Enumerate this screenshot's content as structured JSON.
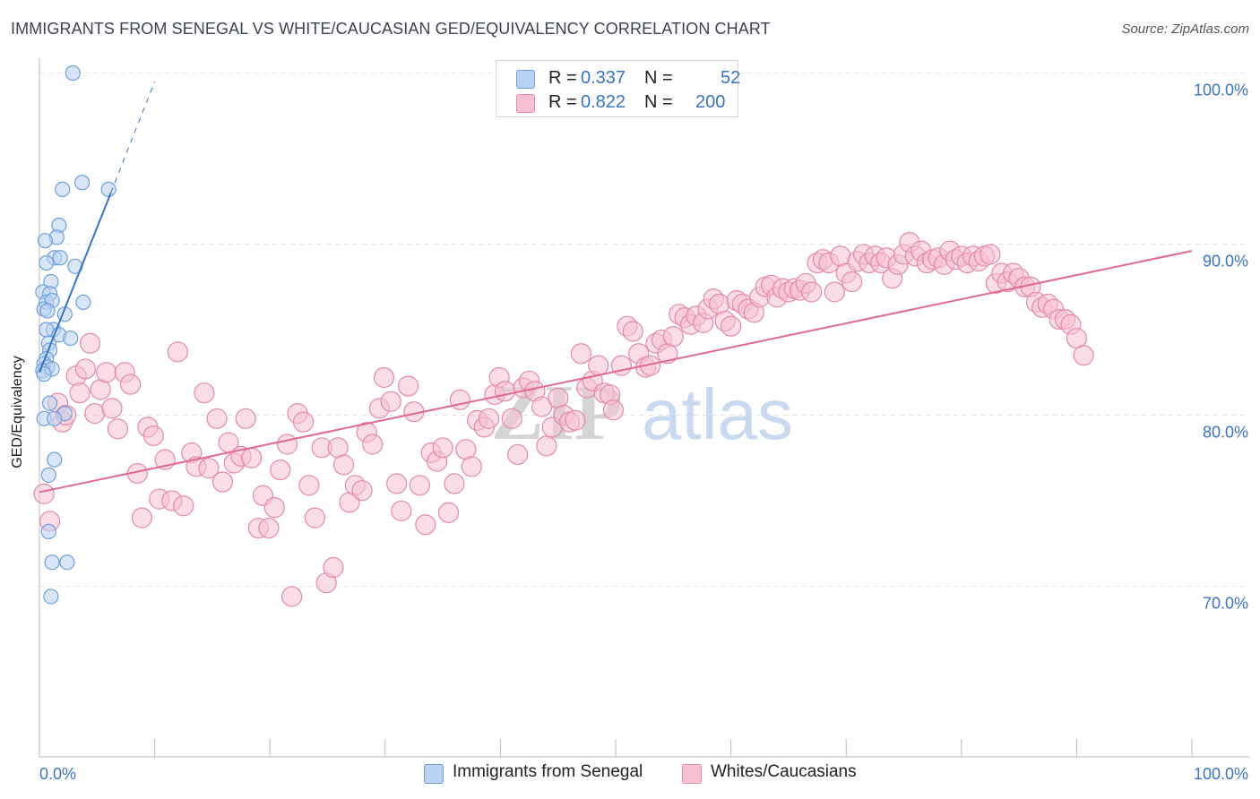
{
  "title": "IMMIGRANTS FROM SENEGAL VS WHITE/CAUCASIAN GED/EQUIVALENCY CORRELATION CHART",
  "source": "Source: ZipAtlas.com",
  "watermark": {
    "zip": "ZIP",
    "atlas": "atlas"
  },
  "legend": {
    "r_label": "R =",
    "n_label": "N =",
    "rows": [
      {
        "r": "0.337",
        "n": "52",
        "fill": "#b9d1f3",
        "stroke": "#6f9fdb"
      },
      {
        "r": "0.822",
        "n": "200",
        "fill": "#f8c1d2",
        "stroke": "#e48aa8"
      }
    ]
  },
  "bottom_legend": [
    "Immigrants from Senegal",
    "Whites/Caucasians"
  ],
  "chart_data": {
    "type": "scatter",
    "title": "IMMIGRANTS FROM SENEGAL VS WHITE/CAUCASIAN GED/EQUIVALENCY CORRELATION CHART",
    "ylabel": "GED/Equivalency",
    "xlabel": "",
    "xlim": [
      0,
      100
    ],
    "ylim": [
      61,
      102
    ],
    "x_tick_labels": [
      "0.0%",
      "100.0%"
    ],
    "y_ticks": [
      70,
      80,
      90,
      100
    ],
    "y_tick_labels": [
      "70.0%",
      "80.0%",
      "90.0%",
      "100.0%"
    ],
    "grid": true,
    "legend_position": "top-center",
    "colors": {
      "blue": "#3b73c2",
      "pink": "#e06993",
      "tick_text": "#3b73c2"
    },
    "series": [
      {
        "name": "Immigrants from Senegal",
        "color": "#6f9fdb",
        "fill": "#b9d1f3",
        "r": 0.337,
        "n": 52,
        "trend": {
          "x0": 0,
          "y0": 82.5,
          "x1": 6.2,
          "y1": 93.0,
          "dash_to_x": 10,
          "dash_to_y": 99.5
        },
        "points": [
          [
            2.9,
            100.0
          ],
          [
            3.7,
            93.6
          ],
          [
            2.0,
            93.2
          ],
          [
            6.0,
            93.2
          ],
          [
            1.7,
            91.1
          ],
          [
            1.5,
            90.4
          ],
          [
            0.5,
            90.2
          ],
          [
            1.3,
            89.2
          ],
          [
            1.8,
            89.2
          ],
          [
            0.6,
            88.9
          ],
          [
            3.1,
            88.7
          ],
          [
            1.0,
            87.8
          ],
          [
            0.3,
            87.2
          ],
          [
            0.9,
            87.1
          ],
          [
            0.6,
            86.6
          ],
          [
            1.1,
            86.7
          ],
          [
            3.8,
            86.6
          ],
          [
            0.4,
            86.2
          ],
          [
            0.7,
            86.1
          ],
          [
            2.2,
            85.9
          ],
          [
            1.2,
            85.0
          ],
          [
            0.6,
            85.0
          ],
          [
            1.7,
            84.7
          ],
          [
            2.7,
            84.5
          ],
          [
            0.8,
            84.2
          ],
          [
            0.9,
            83.8
          ],
          [
            0.6,
            83.3
          ],
          [
            0.4,
            83.0
          ],
          [
            0.7,
            82.8
          ],
          [
            0.3,
            82.6
          ],
          [
            1.1,
            82.7
          ],
          [
            0.4,
            82.4
          ],
          [
            0.9,
            80.7
          ],
          [
            2.2,
            80.1
          ],
          [
            0.4,
            79.8
          ],
          [
            1.3,
            79.8
          ],
          [
            1.3,
            77.4
          ],
          [
            0.8,
            76.5
          ],
          [
            0.8,
            73.2
          ],
          [
            1.1,
            71.4
          ],
          [
            2.4,
            71.4
          ],
          [
            1.0,
            69.4
          ]
        ]
      },
      {
        "name": "Whites/Caucasians",
        "color": "#e48aa8",
        "fill": "#f8c1d2",
        "r": 0.822,
        "n": 200,
        "trend": {
          "x0": 0,
          "y0": 75.5,
          "x1": 100,
          "y1": 89.6
        },
        "points": [
          [
            0.4,
            75.4
          ],
          [
            0.9,
            73.8
          ],
          [
            1.6,
            80.7
          ],
          [
            2.0,
            79.6
          ],
          [
            2.3,
            80.0
          ],
          [
            3.2,
            82.3
          ],
          [
            3.5,
            81.3
          ],
          [
            4.0,
            82.7
          ],
          [
            4.4,
            84.2
          ],
          [
            4.8,
            80.1
          ],
          [
            5.3,
            81.5
          ],
          [
            5.8,
            82.5
          ],
          [
            6.3,
            80.4
          ],
          [
            6.8,
            79.2
          ],
          [
            7.4,
            82.5
          ],
          [
            7.9,
            81.8
          ],
          [
            8.5,
            76.6
          ],
          [
            8.9,
            74.0
          ],
          [
            9.4,
            79.3
          ],
          [
            9.9,
            78.8
          ],
          [
            10.4,
            75.1
          ],
          [
            10.9,
            77.4
          ],
          [
            11.5,
            75.0
          ],
          [
            12.0,
            83.7
          ],
          [
            12.5,
            74.7
          ],
          [
            13.2,
            77.8
          ],
          [
            13.6,
            77.0
          ],
          [
            14.3,
            81.3
          ],
          [
            14.7,
            76.9
          ],
          [
            15.4,
            79.8
          ],
          [
            15.9,
            76.1
          ],
          [
            16.4,
            78.4
          ],
          [
            16.9,
            77.2
          ],
          [
            17.5,
            77.6
          ],
          [
            17.9,
            79.8
          ],
          [
            18.4,
            77.5
          ],
          [
            19.0,
            73.4
          ],
          [
            19.4,
            75.3
          ],
          [
            19.9,
            73.4
          ],
          [
            20.4,
            74.6
          ],
          [
            20.9,
            76.8
          ],
          [
            21.5,
            78.3
          ],
          [
            21.9,
            69.4
          ],
          [
            22.4,
            80.1
          ],
          [
            22.9,
            79.6
          ],
          [
            23.4,
            75.9
          ],
          [
            23.9,
            74.0
          ],
          [
            24.5,
            78.1
          ],
          [
            24.9,
            70.2
          ],
          [
            25.5,
            71.1
          ],
          [
            25.9,
            78.1
          ],
          [
            26.4,
            77.1
          ],
          [
            26.9,
            74.9
          ],
          [
            27.4,
            75.9
          ],
          [
            28.0,
            75.6
          ],
          [
            28.4,
            79.0
          ],
          [
            28.9,
            78.3
          ],
          [
            29.5,
            80.4
          ],
          [
            29.9,
            82.2
          ],
          [
            30.5,
            80.8
          ],
          [
            31.0,
            76.0
          ],
          [
            31.4,
            74.4
          ],
          [
            32.0,
            81.7
          ],
          [
            32.5,
            80.2
          ],
          [
            33.0,
            75.9
          ],
          [
            33.5,
            73.6
          ],
          [
            34.0,
            77.8
          ],
          [
            34.5,
            77.3
          ],
          [
            35.0,
            78.1
          ],
          [
            35.5,
            74.3
          ],
          [
            36.0,
            76.0
          ],
          [
            36.5,
            80.9
          ],
          [
            37.0,
            78.0
          ],
          [
            37.5,
            77.0
          ],
          [
            38.0,
            79.7
          ],
          [
            38.6,
            79.3
          ],
          [
            39.0,
            79.8
          ],
          [
            39.5,
            81.2
          ],
          [
            39.9,
            82.2
          ],
          [
            40.4,
            81.4
          ],
          [
            41.0,
            79.8
          ],
          [
            41.5,
            77.7
          ],
          [
            42.0,
            81.6
          ],
          [
            42.5,
            82.0
          ],
          [
            43.0,
            81.4
          ],
          [
            43.6,
            80.5
          ],
          [
            44.0,
            78.2
          ],
          [
            44.5,
            79.3
          ],
          [
            45.0,
            81.0
          ],
          [
            45.5,
            80.0
          ],
          [
            46.0,
            79.6
          ],
          [
            46.5,
            79.7
          ],
          [
            47.0,
            83.6
          ],
          [
            47.5,
            81.6
          ],
          [
            48.0,
            82.0
          ],
          [
            48.5,
            82.9
          ],
          [
            49.0,
            81.3
          ],
          [
            49.5,
            81.2
          ],
          [
            49.8,
            80.3
          ],
          [
            50.5,
            82.9
          ],
          [
            51.0,
            85.2
          ],
          [
            51.5,
            84.9
          ],
          [
            52.0,
            83.6
          ],
          [
            52.6,
            82.8
          ],
          [
            53.0,
            82.9
          ],
          [
            53.5,
            84.2
          ],
          [
            54.0,
            84.4
          ],
          [
            54.5,
            83.6
          ],
          [
            55.0,
            84.6
          ],
          [
            55.5,
            85.9
          ],
          [
            56.0,
            85.7
          ],
          [
            56.5,
            85.3
          ],
          [
            57.0,
            85.8
          ],
          [
            57.6,
            85.4
          ],
          [
            58.0,
            86.2
          ],
          [
            58.5,
            86.8
          ],
          [
            59.0,
            86.5
          ],
          [
            59.5,
            85.5
          ],
          [
            60.0,
            85.2
          ],
          [
            60.5,
            86.7
          ],
          [
            61.0,
            86.5
          ],
          [
            61.5,
            86.2
          ],
          [
            62.0,
            86.0
          ],
          [
            62.5,
            86.9
          ],
          [
            63.0,
            87.5
          ],
          [
            63.5,
            87.6
          ],
          [
            64.0,
            86.9
          ],
          [
            64.5,
            87.4
          ],
          [
            65.0,
            87.2
          ],
          [
            65.5,
            87.4
          ],
          [
            66.0,
            87.3
          ],
          [
            66.5,
            87.7
          ],
          [
            67.0,
            87.2
          ],
          [
            67.5,
            88.9
          ],
          [
            68.0,
            89.1
          ],
          [
            68.5,
            88.9
          ],
          [
            69.0,
            87.2
          ],
          [
            69.5,
            89.3
          ],
          [
            70.0,
            88.3
          ],
          [
            70.5,
            87.8
          ],
          [
            71.0,
            89.0
          ],
          [
            71.5,
            89.4
          ],
          [
            72.0,
            88.9
          ],
          [
            72.5,
            89.3
          ],
          [
            73.0,
            88.9
          ],
          [
            73.5,
            89.2
          ],
          [
            74.0,
            88.0
          ],
          [
            74.5,
            88.8
          ],
          [
            75.0,
            89.4
          ],
          [
            75.5,
            90.1
          ],
          [
            76.0,
            89.3
          ],
          [
            76.5,
            89.6
          ],
          [
            77.0,
            88.9
          ],
          [
            77.5,
            89.1
          ],
          [
            78.0,
            89.2
          ],
          [
            78.5,
            88.8
          ],
          [
            79.0,
            89.6
          ],
          [
            79.5,
            89.1
          ],
          [
            80.0,
            89.3
          ],
          [
            80.5,
            88.9
          ],
          [
            81.0,
            89.3
          ],
          [
            81.5,
            89.0
          ],
          [
            82.0,
            89.3
          ],
          [
            82.5,
            89.4
          ],
          [
            83.0,
            87.7
          ],
          [
            83.5,
            88.3
          ],
          [
            84.0,
            87.8
          ],
          [
            84.5,
            88.3
          ],
          [
            85.0,
            88.0
          ],
          [
            85.5,
            87.5
          ],
          [
            86.0,
            87.5
          ],
          [
            86.5,
            86.6
          ],
          [
            87.0,
            86.3
          ],
          [
            87.5,
            86.5
          ],
          [
            88.0,
            86.2
          ],
          [
            88.5,
            85.6
          ],
          [
            89.0,
            85.6
          ],
          [
            89.5,
            85.3
          ],
          [
            90.0,
            84.5
          ],
          [
            90.6,
            83.5
          ]
        ]
      }
    ]
  }
}
